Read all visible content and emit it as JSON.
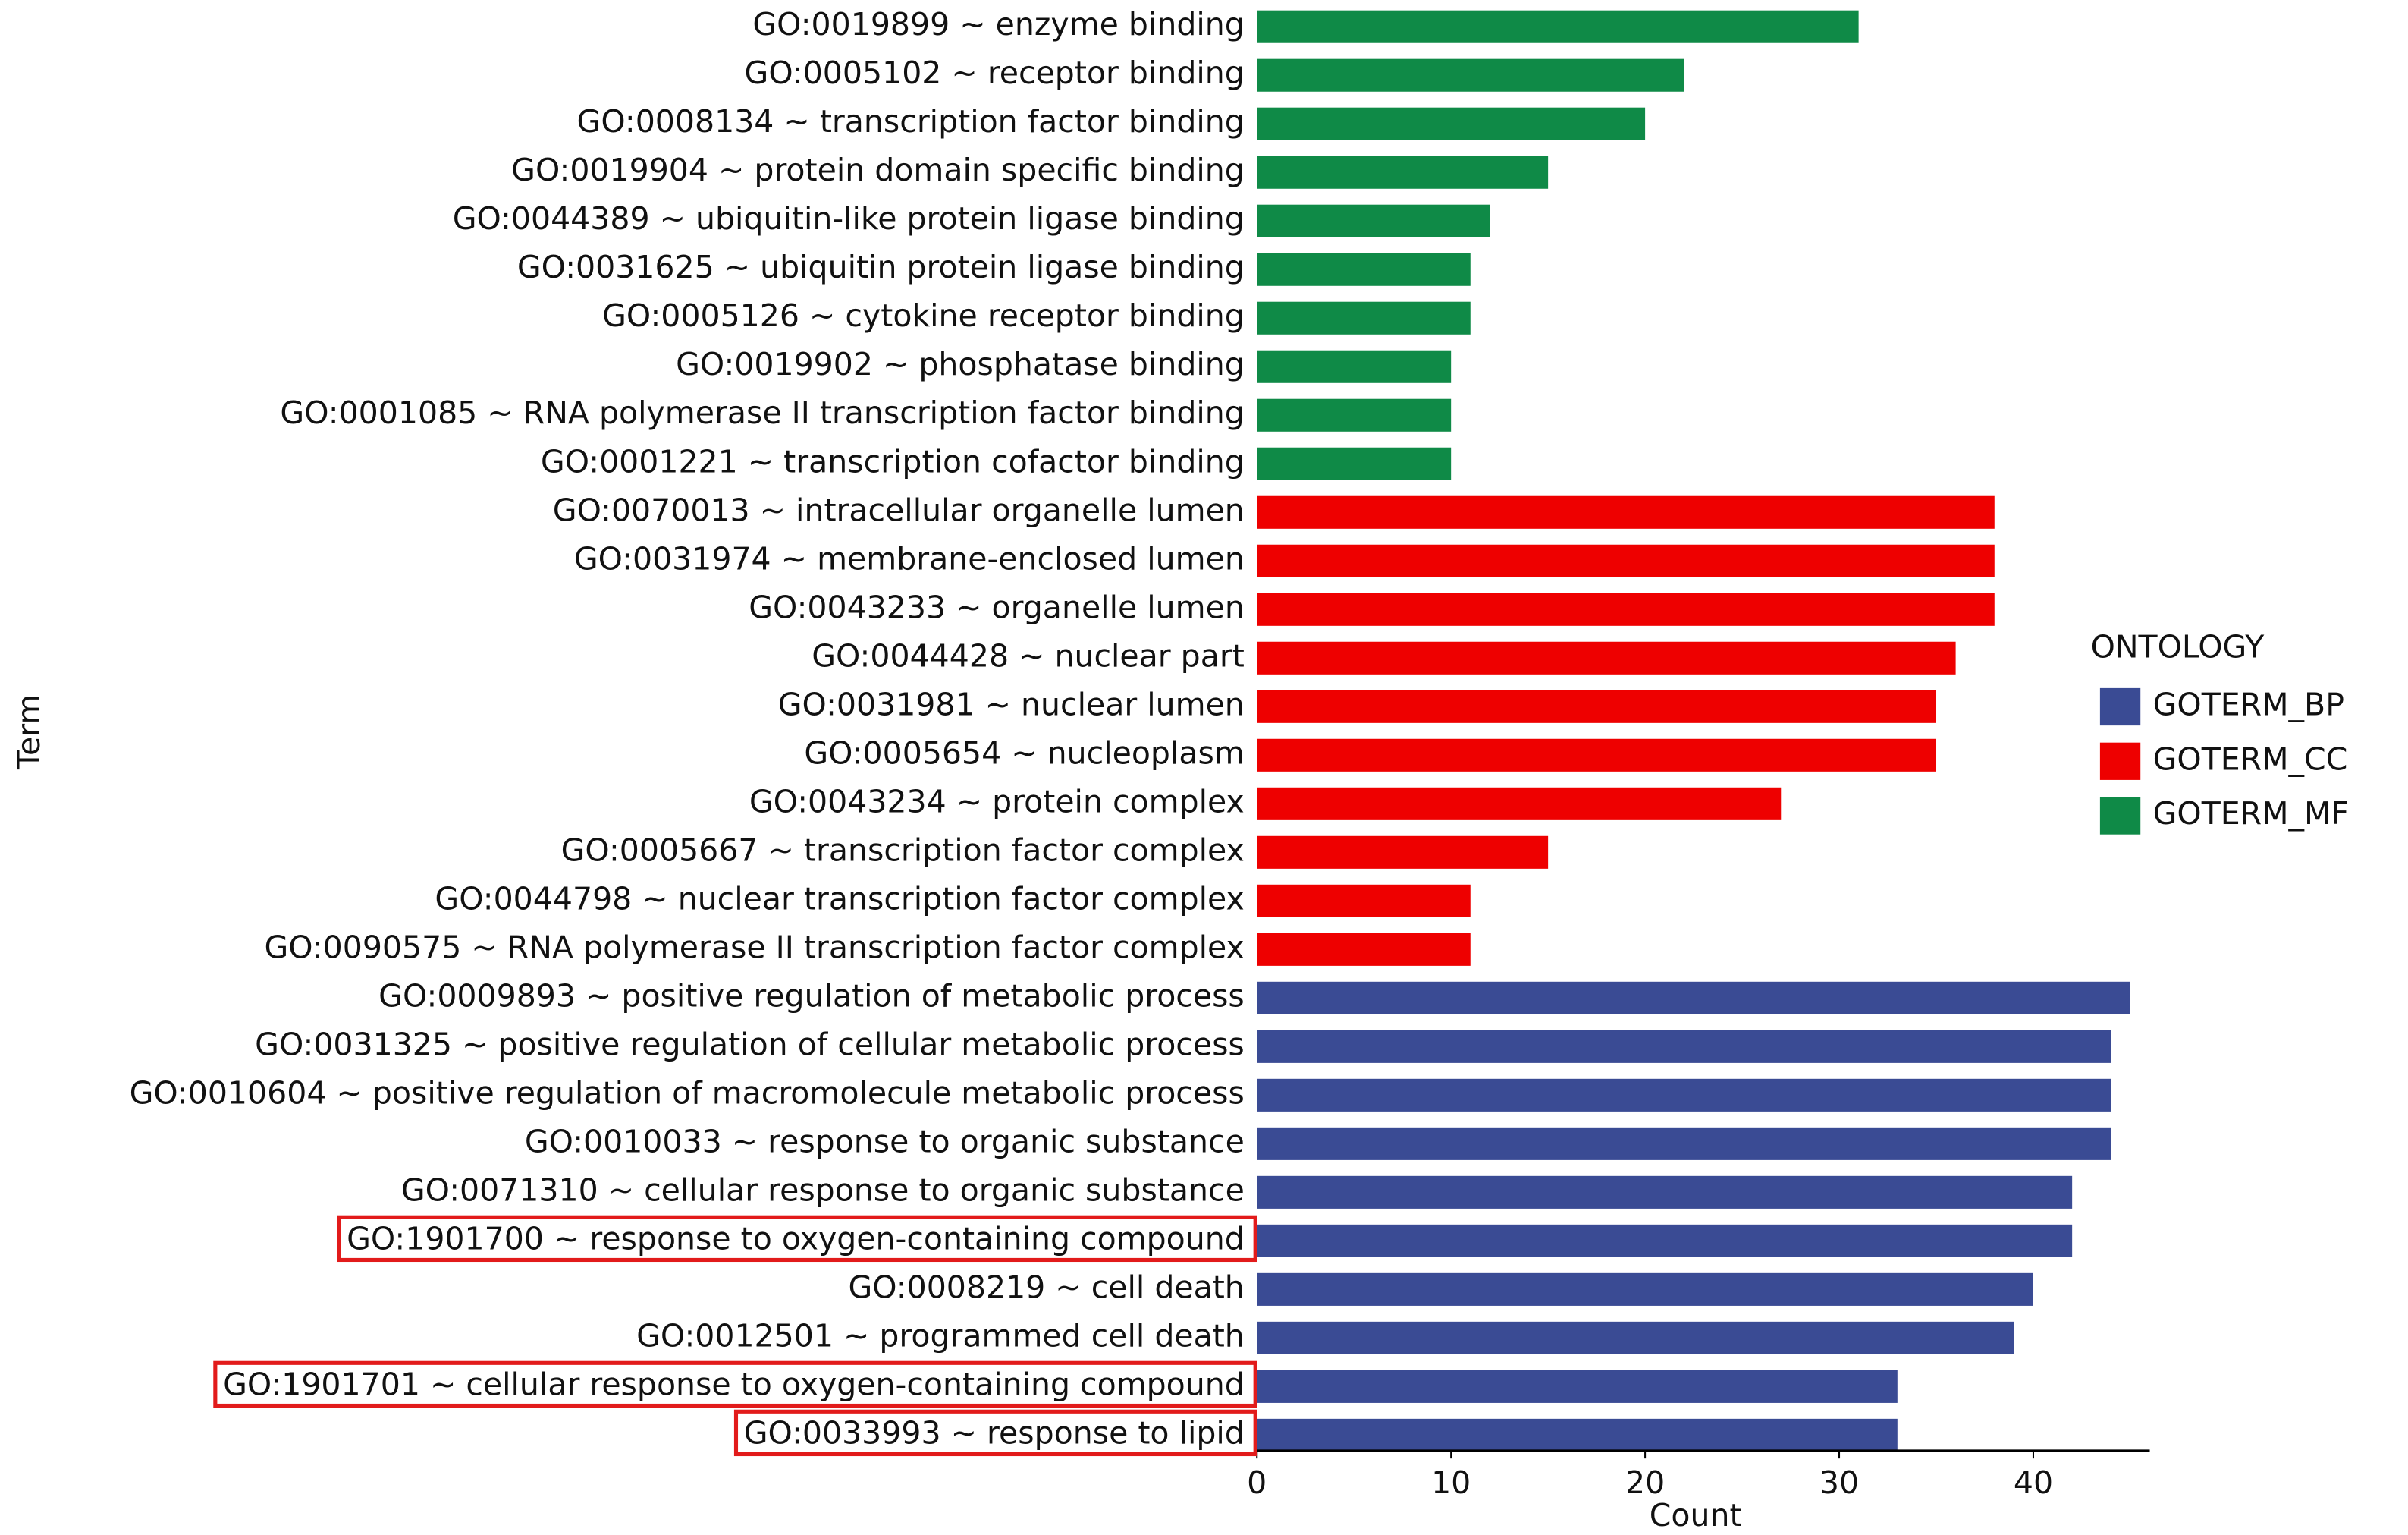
{
  "chart_data": {
    "type": "barh",
    "x_label": "Count",
    "y_label": "Term",
    "legend_title": "ONTOLOGY",
    "categories": [
      "GO:0019899 ~ enzyme binding",
      "GO:0005102 ~ receptor binding",
      "GO:0008134 ~ transcription factor binding",
      "GO:0019904 ~ protein domain specific binding",
      "GO:0044389 ~ ubiquitin-like protein ligase binding",
      "GO:0031625 ~ ubiquitin protein ligase binding",
      "GO:0005126 ~ cytokine receptor binding",
      "GO:0019902 ~ phosphatase binding",
      "GO:0001085 ~ RNA polymerase II transcription factor binding",
      "GO:0001221 ~ transcription cofactor binding",
      "GO:0070013 ~ intracellular organelle lumen",
      "GO:0031974 ~ membrane-enclosed lumen",
      "GO:0043233 ~ organelle lumen",
      "GO:0044428 ~ nuclear part",
      "GO:0031981 ~ nuclear lumen",
      "GO:0005654 ~ nucleoplasm",
      "GO:0043234 ~ protein complex",
      "GO:0005667 ~ transcription factor complex",
      "GO:0044798 ~ nuclear transcription factor complex",
      "GO:0090575 ~ RNA polymerase II transcription factor complex",
      "GO:0009893 ~ positive regulation of metabolic process",
      "GO:0031325 ~ positive regulation of cellular metabolic process",
      "GO:0010604 ~ positive regulation of macromolecule metabolic process",
      "GO:0010033 ~ response to organic substance",
      "GO:0071310 ~ cellular response to organic substance",
      "GO:1901700 ~ response to oxygen-containing compound",
      "GO:0008219 ~ cell death",
      "GO:0012501 ~ programmed cell death",
      "GO:1901701 ~ cellular response to oxygen-containing compound",
      "GO:0033993 ~ response to lipid"
    ],
    "series": [
      {
        "name": "GOTERM_BP",
        "color": "#3a4b94",
        "values": [
          null,
          null,
          null,
          null,
          null,
          null,
          null,
          null,
          null,
          null,
          null,
          null,
          null,
          null,
          null,
          null,
          null,
          null,
          null,
          null,
          45,
          44,
          44,
          44,
          42,
          42,
          40,
          39,
          33,
          33
        ]
      },
      {
        "name": "GOTERM_CC",
        "color": "#ee0000",
        "values": [
          null,
          null,
          null,
          null,
          null,
          null,
          null,
          null,
          null,
          null,
          38,
          38,
          38,
          36,
          35,
          35,
          27,
          15,
          11,
          11,
          null,
          null,
          null,
          null,
          null,
          null,
          null,
          null,
          null,
          null
        ]
      },
      {
        "name": "GOTERM_MF",
        "color": "#0f8a47",
        "values": [
          31,
          22,
          20,
          15,
          12,
          11,
          11,
          10,
          10,
          10,
          null,
          null,
          null,
          null,
          null,
          null,
          null,
          null,
          null,
          null,
          null,
          null,
          null,
          null,
          null,
          null,
          null,
          null,
          null,
          null
        ]
      }
    ],
    "highlight": [
      25,
      28,
      29
    ],
    "xlim": [
      0,
      46
    ],
    "xticks": [
      0,
      10,
      20,
      30,
      40
    ]
  }
}
